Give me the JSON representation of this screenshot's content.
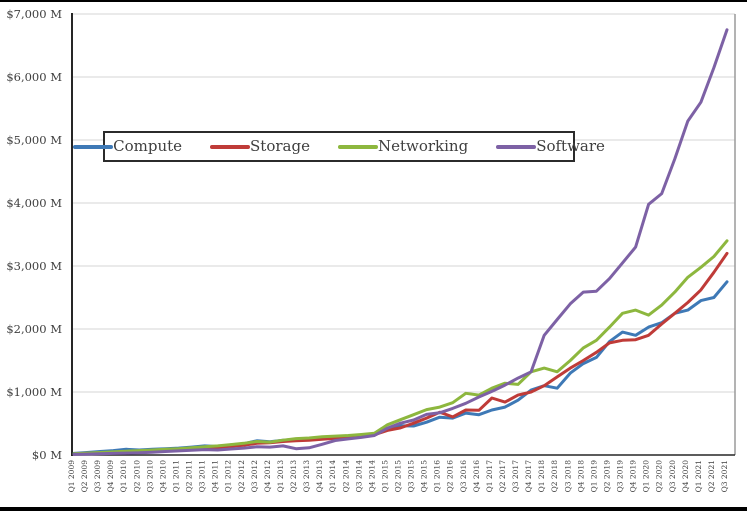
{
  "page": {
    "background": "#ffffff",
    "top_bar_color": "#000000",
    "bottom_bar_color": "#000000",
    "axis_color": "#404040",
    "grid_color": "#d6d6d6",
    "tick_label_color": "#404040"
  },
  "chart_data": {
    "type": "line",
    "title": "",
    "xlabel": "",
    "ylabel": "",
    "ylim": [
      0,
      7000
    ],
    "y_tick_interval": 1000,
    "grid": true,
    "legend_position": "inside-top-center",
    "y_ticks": [
      "$7,000 M",
      "$6,000 M",
      "$5,000 M",
      "$4,000 M",
      "$3,000 M",
      "$2,000 M",
      "$1,000 M",
      "$0 M"
    ],
    "categories": [
      "Q1 2009",
      "Q2 2009",
      "Q3 2009",
      "Q4 2009",
      "Q1 2010",
      "Q2 2010",
      "Q3 2010",
      "Q4 2010",
      "Q1 2011",
      "Q2 2011",
      "Q3 2011",
      "Q4 2011",
      "Q1 2012",
      "Q2 2012",
      "Q3 2012",
      "Q4 2012",
      "Q1 2013",
      "Q2 2013",
      "Q3 2013",
      "Q4 2013",
      "Q1 2014",
      "Q2 2014",
      "Q3 2014",
      "Q4 2014",
      "Q1 2015",
      "Q2 2015",
      "Q3 2015",
      "Q4 2015",
      "Q1 2016",
      "Q2 2016",
      "Q3 2016",
      "Q4 2016",
      "Q1 2017",
      "Q2 2017",
      "Q3 2017",
      "Q4 2017",
      "Q1 2018",
      "Q2 2018",
      "Q3 2018",
      "Q4 2018",
      "Q1 2019",
      "Q2 2019",
      "Q3 2019",
      "Q4 2019",
      "Q1 2020",
      "Q2 2020",
      "Q3 2020",
      "Q4 2020",
      "Q1 2021",
      "Q2 2021",
      "Q3 2021"
    ],
    "series": [
      {
        "name": "Compute",
        "color": "#3e79b6",
        "values": [
          25,
          40,
          55,
          70,
          90,
          80,
          90,
          100,
          110,
          125,
          145,
          135,
          160,
          180,
          225,
          210,
          235,
          250,
          245,
          265,
          275,
          290,
          300,
          315,
          420,
          465,
          460,
          520,
          600,
          585,
          665,
          640,
          715,
          760,
          870,
          1030,
          1100,
          1060,
          1300,
          1450,
          1550,
          1800,
          1950,
          1900,
          2030,
          2100,
          2250,
          2300,
          2450,
          2500,
          2750
        ]
      },
      {
        "name": "Storage",
        "color": "#bf3b38",
        "values": [
          15,
          25,
          35,
          45,
          55,
          60,
          70,
          80,
          95,
          110,
          125,
          120,
          140,
          155,
          185,
          195,
          215,
          225,
          235,
          250,
          265,
          285,
          295,
          320,
          390,
          430,
          505,
          585,
          680,
          605,
          715,
          710,
          905,
          840,
          950,
          1000,
          1100,
          1240,
          1380,
          1500,
          1630,
          1780,
          1820,
          1830,
          1900,
          2080,
          2250,
          2420,
          2620,
          2900,
          3200
        ]
      },
      {
        "name": "Networking",
        "color": "#8db73e",
        "values": [
          20,
          30,
          40,
          50,
          60,
          70,
          80,
          90,
          100,
          115,
          130,
          145,
          165,
          185,
          215,
          205,
          235,
          260,
          270,
          290,
          300,
          310,
          325,
          345,
          480,
          560,
          640,
          720,
          760,
          830,
          980,
          950,
          1060,
          1140,
          1120,
          1320,
          1380,
          1320,
          1500,
          1700,
          1820,
          2030,
          2250,
          2300,
          2220,
          2380,
          2585,
          2820,
          2980,
          3150,
          3400
        ]
      },
      {
        "name": "Software",
        "color": "#7d61a5",
        "values": [
          10,
          15,
          20,
          25,
          30,
          35,
          45,
          55,
          65,
          75,
          85,
          80,
          95,
          110,
          130,
          125,
          145,
          100,
          115,
          170,
          230,
          255,
          280,
          310,
          425,
          505,
          555,
          645,
          670,
          740,
          820,
          920,
          1010,
          1110,
          1220,
          1320,
          1900,
          2150,
          2400,
          2585,
          2600,
          2800,
          3050,
          3300,
          3980,
          4150,
          4700,
          5300,
          5600,
          6150,
          6750
        ]
      }
    ]
  }
}
